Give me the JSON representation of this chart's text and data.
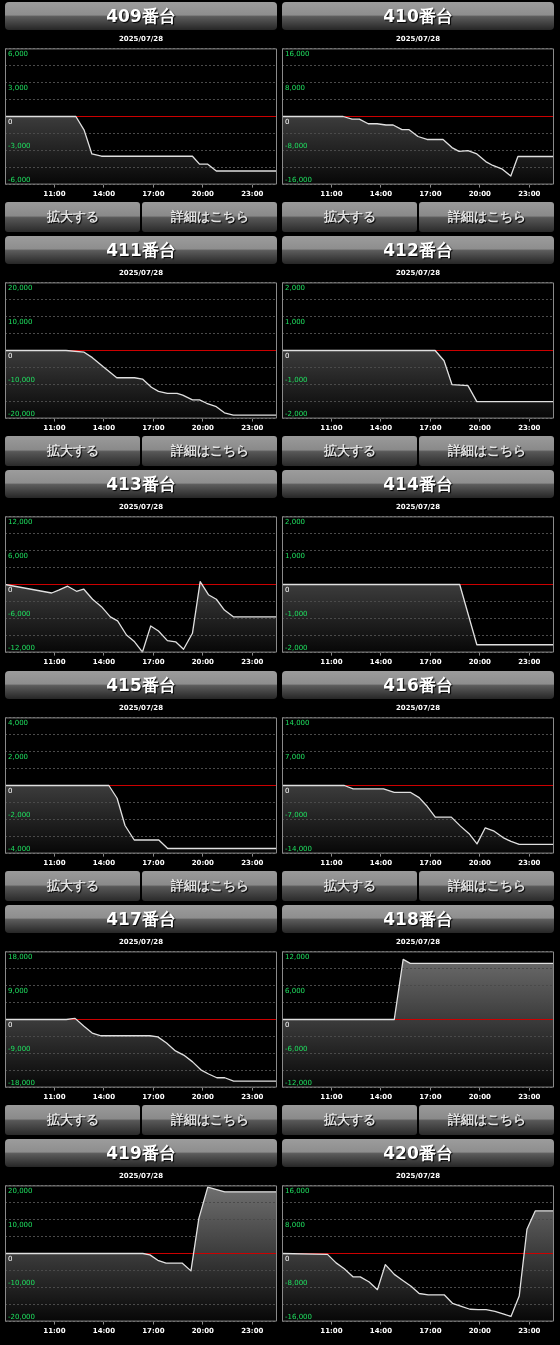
{
  "chart_data": [
    {
      "type": "line",
      "title": "409番台",
      "subtitle": "2025/07/28",
      "x": [
        8,
        12.3,
        12.8,
        13.27,
        13.85,
        19.37,
        19.8,
        20.3,
        20.82,
        24.5
      ],
      "series": [
        {
          "color": "#e0e0e0",
          "values": [
            0,
            0,
            -1200,
            -3300,
            -3500,
            -3500,
            -4200,
            -4200,
            -4800,
            -4800
          ],
          "upper": [
            0,
            0,
            -1200,
            -3300,
            -3500,
            -3500,
            -4200,
            -4200,
            -4800,
            -4800
          ],
          "lower": [
            -6000,
            -6000,
            -6000,
            -6000,
            -6000,
            -6000,
            -6000,
            -6000,
            -6000,
            -6000
          ]
        }
      ],
      "xlim": [
        8,
        24.5
      ],
      "xticks": [
        {
          "value": 11,
          "label": "11:00"
        },
        {
          "value": 14,
          "label": "14:00"
        },
        {
          "value": 17,
          "label": "17:00"
        },
        {
          "value": 20,
          "label": "20:00"
        },
        {
          "value": 23,
          "label": "23:00"
        }
      ],
      "ylim": [
        -6000,
        6000
      ],
      "yticks": [
        {
          "value": -6000,
          "label": "-6,000"
        },
        {
          "value": -4500,
          "label": null
        },
        {
          "value": -3000,
          "label": "-3,000"
        },
        {
          "value": -1500,
          "label": null
        },
        {
          "value": 0,
          "label": "0"
        },
        {
          "value": 1500,
          "label": null
        },
        {
          "value": 3000,
          "label": "3,000"
        },
        {
          "value": 4500,
          "label": null
        },
        {
          "value": 6000,
          "label": "6,000"
        }
      ],
      "grid": "y",
      "ref_lines": [
        {
          "axis": "y",
          "value": 0,
          "color": "#cc0000"
        }
      ],
      "annotations": [
        "拡大する",
        "詳細はこちら"
      ]
    },
    {
      "type": "line",
      "title": "410番台",
      "subtitle": "2025/07/28",
      "x": [
        8,
        11.71,
        12.25,
        12.69,
        13.23,
        13.77,
        14.31,
        14.74,
        15.28,
        15.71,
        16.25,
        16.8,
        17.77,
        18.31,
        18.74,
        19.28,
        19.82,
        20.36,
        20.79,
        21.33,
        21.88,
        22.31,
        24.5
      ],
      "series": [
        {
          "color": "#e0e0e0",
          "values": [
            0,
            0,
            -600,
            -600,
            -1700,
            -1700,
            -2000,
            -2000,
            -3100,
            -3100,
            -4700,
            -5400,
            -5400,
            -7300,
            -8200,
            -8000,
            -8800,
            -10600,
            -11500,
            -12300,
            -14000,
            -9400,
            -9400
          ],
          "upper": [
            0,
            0,
            -600,
            -600,
            -1700,
            -1700,
            -2000,
            -2000,
            -3100,
            -3100,
            -4700,
            -5400,
            -5400,
            -7300,
            -8200,
            -8000,
            -8800,
            -10600,
            -11500,
            -12300,
            -14000,
            -9400,
            -9400
          ],
          "lower": [
            -16000,
            -16000,
            -16000,
            -16000,
            -16000,
            -16000,
            -16000,
            -16000,
            -16000,
            -16000,
            -16000,
            -16000,
            -16000,
            -16000,
            -16000,
            -16000,
            -16000,
            -16000,
            -16000,
            -16000,
            -16000,
            -16000,
            -16000
          ]
        }
      ],
      "xlim": [
        8,
        24.5
      ],
      "xticks": [
        {
          "value": 11,
          "label": "11:00"
        },
        {
          "value": 14,
          "label": "14:00"
        },
        {
          "value": 17,
          "label": "17:00"
        },
        {
          "value": 20,
          "label": "20:00"
        },
        {
          "value": 23,
          "label": "23:00"
        }
      ],
      "ylim": [
        -16000,
        16000
      ],
      "yticks": [
        {
          "value": -16000,
          "label": "-16,000"
        },
        {
          "value": -12000,
          "label": null
        },
        {
          "value": -8000,
          "label": "-8,000"
        },
        {
          "value": -4000,
          "label": null
        },
        {
          "value": 0,
          "label": "0"
        },
        {
          "value": 4000,
          "label": null
        },
        {
          "value": 8000,
          "label": "8,000"
        },
        {
          "value": 12000,
          "label": null
        },
        {
          "value": 16000,
          "label": "16,000"
        }
      ],
      "grid": "y",
      "ref_lines": [
        {
          "axis": "y",
          "value": 0,
          "color": "#cc0000"
        }
      ],
      "annotations": [
        "拡大する",
        "詳細はこちら"
      ]
    },
    {
      "type": "line",
      "title": "411番台",
      "subtitle": "2025/07/28",
      "x": [
        8,
        11.7,
        12.8,
        13.3,
        13.96,
        14.78,
        15.86,
        16.34,
        16.88,
        17.31,
        17.85,
        18.44,
        18.78,
        19.37,
        19.8,
        20.23,
        20.82,
        21.31,
        21.85,
        24.5
      ],
      "series": [
        {
          "color": "#e0e0e0",
          "values": [
            0,
            0,
            -500,
            -2100,
            -4800,
            -8000,
            -8000,
            -8400,
            -10800,
            -12000,
            -12600,
            -12600,
            -13100,
            -14500,
            -14500,
            -15500,
            -16500,
            -18300,
            -19000,
            -19000
          ],
          "upper": [
            0,
            0,
            -500,
            -2100,
            -4800,
            -8000,
            -8000,
            -8400,
            -10800,
            -12000,
            -12600,
            -12600,
            -13100,
            -14500,
            -14500,
            -15500,
            -16500,
            -18300,
            -19000,
            -19000
          ],
          "lower": [
            -20000,
            -20000,
            -20000,
            -20000,
            -20000,
            -20000,
            -20000,
            -20000,
            -20000,
            -20000,
            -20000,
            -20000,
            -20000,
            -20000,
            -20000,
            -20000,
            -20000,
            -20000,
            -20000,
            -20000
          ]
        }
      ],
      "xlim": [
        8,
        24.5
      ],
      "xticks": [
        {
          "value": 11,
          "label": "11:00"
        },
        {
          "value": 14,
          "label": "14:00"
        },
        {
          "value": 17,
          "label": "17:00"
        },
        {
          "value": 20,
          "label": "20:00"
        },
        {
          "value": 23,
          "label": "23:00"
        }
      ],
      "ylim": [
        -20000,
        20000
      ],
      "yticks": [
        {
          "value": -20000,
          "label": "-20,000"
        },
        {
          "value": -15000,
          "label": null
        },
        {
          "value": -10000,
          "label": "-10,000"
        },
        {
          "value": -5000,
          "label": null
        },
        {
          "value": 0,
          "label": "0"
        },
        {
          "value": 5000,
          "label": null
        },
        {
          "value": 10000,
          "label": "10,000"
        },
        {
          "value": 15000,
          "label": null
        },
        {
          "value": 20000,
          "label": "20,000"
        }
      ],
      "grid": "y",
      "ref_lines": [
        {
          "axis": "y",
          "value": 0,
          "color": "#cc0000"
        }
      ],
      "annotations": [
        "拡大する",
        "詳細はこちら"
      ]
    },
    {
      "type": "line",
      "title": "412番台",
      "subtitle": "2025/07/28",
      "x": [
        8,
        17.29,
        17.83,
        18.31,
        19.28,
        19.82,
        24.5
      ],
      "series": [
        {
          "color": "#e0e0e0",
          "values": [
            0,
            0,
            -300,
            -1000,
            -1030,
            -1500,
            -1500
          ],
          "upper": [
            0,
            0,
            -300,
            -1000,
            -1030,
            -1500,
            -1500
          ],
          "lower": [
            -2000,
            -2000,
            -2000,
            -2000,
            -2000,
            -2000,
            -2000
          ]
        }
      ],
      "xlim": [
        8,
        24.5
      ],
      "xticks": [
        {
          "value": 11,
          "label": "11:00"
        },
        {
          "value": 14,
          "label": "14:00"
        },
        {
          "value": 17,
          "label": "17:00"
        },
        {
          "value": 20,
          "label": "20:00"
        },
        {
          "value": 23,
          "label": "23:00"
        }
      ],
      "ylim": [
        -2000,
        2000
      ],
      "yticks": [
        {
          "value": -2000,
          "label": "-2,000"
        },
        {
          "value": -1500,
          "label": null
        },
        {
          "value": -1000,
          "label": "-1,000"
        },
        {
          "value": -500,
          "label": null
        },
        {
          "value": 0,
          "label": "0"
        },
        {
          "value": 500,
          "label": null
        },
        {
          "value": 1000,
          "label": "1,000"
        },
        {
          "value": 1500,
          "label": null
        },
        {
          "value": 2000,
          "label": "2,000"
        }
      ],
      "grid": "y",
      "ref_lines": [
        {
          "axis": "y",
          "value": 0,
          "color": "#cc0000"
        }
      ],
      "annotations": [
        "拡大する",
        "詳細はこちら"
      ]
    },
    {
      "type": "line",
      "title": "413番台",
      "subtitle": "2025/07/28",
      "x": [
        8,
        10.83,
        11.26,
        11.8,
        12.34,
        12.77,
        13.31,
        13.85,
        14.39,
        14.83,
        15.37,
        15.86,
        16.34,
        16.84,
        17.31,
        17.85,
        18.35,
        18.83,
        19.37,
        19.84,
        20.34,
        20.82,
        21.31,
        21.85,
        24.5
      ],
      "series": [
        {
          "color": "#e0e0e0",
          "values": [
            0,
            -1500,
            -1000,
            -300,
            -1200,
            -800,
            -2600,
            -3900,
            -5700,
            -6400,
            -8900,
            -10100,
            -11900,
            -7300,
            -8200,
            -9900,
            -10100,
            -11400,
            -8600,
            500,
            -1800,
            -2600,
            -4500,
            -5700,
            -5700
          ],
          "upper": [
            0,
            -1500,
            -1000,
            -300,
            -1200,
            -800,
            -2600,
            -3900,
            -5700,
            -6400,
            -8900,
            -10100,
            -11900,
            -7300,
            -8200,
            -9900,
            -10100,
            -11400,
            -8600,
            500,
            -1800,
            -2600,
            -4500,
            -5700,
            -5700
          ],
          "lower": [
            -12000,
            -12000,
            -12000,
            -12000,
            -12000,
            -12000,
            -12000,
            -12000,
            -12000,
            -12000,
            -12000,
            -12000,
            -12000,
            -12000,
            -12000,
            -12000,
            -12000,
            -12000,
            -12000,
            -12000,
            -12000,
            -12000,
            -12000,
            -12000,
            -12000
          ]
        }
      ],
      "xlim": [
        8,
        24.5
      ],
      "xticks": [
        {
          "value": 11,
          "label": "11:00"
        },
        {
          "value": 14,
          "label": "14:00"
        },
        {
          "value": 17,
          "label": "17:00"
        },
        {
          "value": 20,
          "label": "20:00"
        },
        {
          "value": 23,
          "label": "23:00"
        }
      ],
      "ylim": [
        -12000,
        12000
      ],
      "yticks": [
        {
          "value": -12000,
          "label": "-12,000"
        },
        {
          "value": -9000,
          "label": null
        },
        {
          "value": -6000,
          "label": "-6,000"
        },
        {
          "value": -3000,
          "label": null
        },
        {
          "value": 0,
          "label": "0"
        },
        {
          "value": 3000,
          "label": null
        },
        {
          "value": 6000,
          "label": "6,000"
        },
        {
          "value": 9000,
          "label": null
        },
        {
          "value": 12000,
          "label": "12,000"
        }
      ],
      "grid": "y",
      "ref_lines": [
        {
          "axis": "y",
          "value": 0,
          "color": "#cc0000"
        }
      ]
    },
    {
      "type": "line",
      "title": "414番台",
      "subtitle": "2025/07/28",
      "x": [
        8,
        18.78,
        19.82,
        24.5
      ],
      "series": [
        {
          "color": "#e0e0e0",
          "values": [
            0,
            0,
            -1770,
            -1770
          ],
          "upper": [
            0,
            0,
            -1770,
            -1770
          ],
          "lower": [
            -2000,
            -2000,
            -2000,
            -2000
          ]
        }
      ],
      "xlim": [
        8,
        24.5
      ],
      "xticks": [
        {
          "value": 11,
          "label": "11:00"
        },
        {
          "value": 14,
          "label": "14:00"
        },
        {
          "value": 17,
          "label": "17:00"
        },
        {
          "value": 20,
          "label": "20:00"
        },
        {
          "value": 23,
          "label": "23:00"
        }
      ],
      "ylim": [
        -2000,
        2000
      ],
      "yticks": [
        {
          "value": -2000,
          "label": "-2,000"
        },
        {
          "value": -1500,
          "label": null
        },
        {
          "value": -1000,
          "label": "-1,000"
        },
        {
          "value": -500,
          "label": null
        },
        {
          "value": 0,
          "label": "0"
        },
        {
          "value": 500,
          "label": null
        },
        {
          "value": 1000,
          "label": "1,000"
        },
        {
          "value": 1500,
          "label": null
        },
        {
          "value": 2000,
          "label": "2,000"
        }
      ],
      "grid": "y",
      "ref_lines": [
        {
          "axis": "y",
          "value": 0,
          "color": "#cc0000"
        }
      ]
    },
    {
      "type": "line",
      "title": "415番台",
      "subtitle": "2025/07/28",
      "x": [
        8,
        14.3,
        14.8,
        15.28,
        15.84,
        17.33,
        17.87,
        24.5
      ],
      "series": [
        {
          "color": "#e0e0e0",
          "values": [
            0,
            0,
            -750,
            -2350,
            -3200,
            -3200,
            -3700,
            -3700
          ],
          "upper": [
            0,
            0,
            -750,
            -2350,
            -3200,
            -3200,
            -3700,
            -3700
          ],
          "lower": [
            -4000,
            -4000,
            -4000,
            -4000,
            -4000,
            -4000,
            -4000,
            -4000
          ]
        }
      ],
      "xlim": [
        8,
        24.5
      ],
      "xticks": [
        {
          "value": 11,
          "label": "11:00"
        },
        {
          "value": 14,
          "label": "14:00"
        },
        {
          "value": 17,
          "label": "17:00"
        },
        {
          "value": 20,
          "label": "20:00"
        },
        {
          "value": 23,
          "label": "23:00"
        }
      ],
      "ylim": [
        -4000,
        4000
      ],
      "yticks": [
        {
          "value": -4000,
          "label": "-4,000"
        },
        {
          "value": -3000,
          "label": null
        },
        {
          "value": -2000,
          "label": "-2,000"
        },
        {
          "value": -1000,
          "label": null
        },
        {
          "value": 0,
          "label": "0"
        },
        {
          "value": 1000,
          "label": null
        },
        {
          "value": 2000,
          "label": "2,000"
        },
        {
          "value": 3000,
          "label": null
        },
        {
          "value": 4000,
          "label": "4,000"
        }
      ],
      "grid": "y",
      "ref_lines": [
        {
          "axis": "y",
          "value": 0,
          "color": "#cc0000"
        }
      ],
      "annotations": [
        "拡大する",
        "詳細はこちら"
      ]
    },
    {
      "type": "line",
      "title": "416番台",
      "subtitle": "2025/07/28",
      "x": [
        8,
        11.78,
        12.32,
        14.16,
        14.81,
        15.78,
        16.32,
        16.76,
        17.3,
        18.27,
        18.81,
        19.35,
        19.83,
        20.33,
        20.87,
        21.41,
        21.89,
        22.39,
        24.5
      ],
      "series": [
        {
          "color": "#e0e0e0",
          "values": [
            0,
            0,
            -700,
            -700,
            -1400,
            -1400,
            -2500,
            -4100,
            -6500,
            -6500,
            -8300,
            -9900,
            -12000,
            -8700,
            -9400,
            -10700,
            -11500,
            -12100,
            -12100
          ],
          "upper": [
            0,
            0,
            -700,
            -700,
            -1400,
            -1400,
            -2500,
            -4100,
            -6500,
            -6500,
            -8300,
            -9900,
            -12000,
            -8700,
            -9400,
            -10700,
            -11500,
            -12100,
            -12100
          ],
          "lower": [
            -14000,
            -14000,
            -14000,
            -14000,
            -14000,
            -14000,
            -14000,
            -14000,
            -14000,
            -14000,
            -14000,
            -14000,
            -14000,
            -14000,
            -14000,
            -14000,
            -14000,
            -14000,
            -14000
          ]
        }
      ],
      "xlim": [
        8,
        24.5
      ],
      "xticks": [
        {
          "value": 11,
          "label": "11:00"
        },
        {
          "value": 14,
          "label": "14:00"
        },
        {
          "value": 17,
          "label": "17:00"
        },
        {
          "value": 20,
          "label": "20:00"
        },
        {
          "value": 23,
          "label": "23:00"
        }
      ],
      "ylim": [
        -14000,
        14000
      ],
      "yticks": [
        {
          "value": -14000,
          "label": "-14,000"
        },
        {
          "value": -10500,
          "label": null
        },
        {
          "value": -7000,
          "label": "-7,000"
        },
        {
          "value": -3500,
          "label": null
        },
        {
          "value": 0,
          "label": "0"
        },
        {
          "value": 3500,
          "label": null
        },
        {
          "value": 7000,
          "label": "7,000"
        },
        {
          "value": 10500,
          "label": null
        },
        {
          "value": 14000,
          "label": "14,000"
        }
      ],
      "grid": "y",
      "ref_lines": [
        {
          "axis": "y",
          "value": 0,
          "color": "#cc0000"
        }
      ],
      "annotations": [
        "拡大する",
        "詳細はこちら"
      ]
    },
    {
      "type": "line",
      "title": "417番台",
      "subtitle": "2025/07/28",
      "x": [
        8,
        11.71,
        12.25,
        12.79,
        13.29,
        13.83,
        16.79,
        17.27,
        17.8,
        18.34,
        18.84,
        19.38,
        19.88,
        20.35,
        20.85,
        21.33,
        21.87,
        24.5
      ],
      "series": [
        {
          "color": "#e0e0e0",
          "values": [
            0,
            0,
            300,
            -1800,
            -3600,
            -4300,
            -4300,
            -4600,
            -6200,
            -8300,
            -9400,
            -11200,
            -13300,
            -14400,
            -15400,
            -15400,
            -16300,
            -16300
          ],
          "upper": [
            0,
            0,
            300,
            -1800,
            -3600,
            -4300,
            -4300,
            -4600,
            -6200,
            -8300,
            -9400,
            -11200,
            -13300,
            -14400,
            -15400,
            -15400,
            -16300,
            -16300
          ],
          "lower": [
            -18000,
            -18000,
            -18000,
            -18000,
            -18000,
            -18000,
            -18000,
            -18000,
            -18000,
            -18000,
            -18000,
            -18000,
            -18000,
            -18000,
            -18000,
            -18000,
            -18000,
            -18000
          ]
        }
      ],
      "xlim": [
        8,
        24.5
      ],
      "xticks": [
        {
          "value": 11,
          "label": "11:00"
        },
        {
          "value": 14,
          "label": "14:00"
        },
        {
          "value": 17,
          "label": "17:00"
        },
        {
          "value": 20,
          "label": "20:00"
        },
        {
          "value": 23,
          "label": "23:00"
        }
      ],
      "ylim": [
        -18000,
        18000
      ],
      "yticks": [
        {
          "value": -18000,
          "label": "-18,000"
        },
        {
          "value": -13500,
          "label": null
        },
        {
          "value": -9000,
          "label": "-9,000"
        },
        {
          "value": -4500,
          "label": null
        },
        {
          "value": 0,
          "label": "0"
        },
        {
          "value": 4500,
          "label": null
        },
        {
          "value": 9000,
          "label": "9,000"
        },
        {
          "value": 13500,
          "label": null
        },
        {
          "value": 18000,
          "label": "18,000"
        }
      ],
      "grid": "y",
      "ref_lines": [
        {
          "axis": "y",
          "value": 0,
          "color": "#cc0000"
        }
      ],
      "annotations": [
        "拡大する",
        "詳細はこちら"
      ]
    },
    {
      "type": "line",
      "title": "418番台",
      "subtitle": "2025/07/28",
      "x": [
        8,
        14.81,
        15.35,
        15.78,
        24.5
      ],
      "series": [
        {
          "color": "#e0e0e0",
          "values": [
            0,
            0,
            10600,
            9900,
            9900
          ],
          "upper": [
            0,
            0,
            10600,
            9900,
            9900
          ],
          "lower": [
            -12000,
            -12000,
            -12000,
            -12000,
            -12000
          ]
        }
      ],
      "xlim": [
        8,
        24.5
      ],
      "xticks": [
        {
          "value": 11,
          "label": "11:00"
        },
        {
          "value": 14,
          "label": "14:00"
        },
        {
          "value": 17,
          "label": "17:00"
        },
        {
          "value": 20,
          "label": "20:00"
        },
        {
          "value": 23,
          "label": "23:00"
        }
      ],
      "ylim": [
        -12000,
        12000
      ],
      "yticks": [
        {
          "value": -12000,
          "label": "-12,000"
        },
        {
          "value": -9000,
          "label": null
        },
        {
          "value": -6000,
          "label": "-6,000"
        },
        {
          "value": -3000,
          "label": null
        },
        {
          "value": 0,
          "label": "0"
        },
        {
          "value": 3000,
          "label": null
        },
        {
          "value": 6000,
          "label": "6,000"
        },
        {
          "value": 9000,
          "label": null
        },
        {
          "value": 12000,
          "label": "12,000"
        }
      ],
      "grid": "y",
      "ref_lines": [
        {
          "axis": "y",
          "value": 0,
          "color": "#cc0000"
        }
      ],
      "annotations": [
        "拡大する",
        "詳細はこちら"
      ]
    },
    {
      "type": "line",
      "title": "419番台",
      "subtitle": "2025/07/28",
      "x": [
        8,
        16.36,
        16.79,
        17.27,
        17.77,
        18.74,
        19.28,
        19.76,
        20.3,
        21.33,
        24.5
      ],
      "series": [
        {
          "color": "#e0e0e0",
          "values": [
            0,
            0,
            -400,
            -2000,
            -2800,
            -2800,
            -5100,
            10300,
            19500,
            18100,
            18100
          ],
          "upper": [
            0,
            0,
            -400,
            -2000,
            -2800,
            -2800,
            -5100,
            10300,
            19500,
            18100,
            18100
          ],
          "lower": [
            -20000,
            -20000,
            -20000,
            -20000,
            -20000,
            -20000,
            -20000,
            -20000,
            -20000,
            -20000,
            -20000
          ]
        }
      ],
      "xlim": [
        8,
        24.5
      ],
      "xticks": [
        {
          "value": 11,
          "label": "11:00"
        },
        {
          "value": 14,
          "label": "14:00"
        },
        {
          "value": 17,
          "label": "17:00"
        },
        {
          "value": 20,
          "label": "20:00"
        },
        {
          "value": 23,
          "label": "23:00"
        }
      ],
      "ylim": [
        -20000,
        20000
      ],
      "yticks": [
        {
          "value": -20000,
          "label": "-20,000"
        },
        {
          "value": -15000,
          "label": null
        },
        {
          "value": -10000,
          "label": "-10,000"
        },
        {
          "value": -5000,
          "label": null
        },
        {
          "value": 0,
          "label": "0"
        },
        {
          "value": 5000,
          "label": null
        },
        {
          "value": 10000,
          "label": "10,000"
        },
        {
          "value": 15000,
          "label": null
        },
        {
          "value": 20000,
          "label": "20,000"
        }
      ],
      "grid": "y",
      "ref_lines": [
        {
          "axis": "y",
          "value": 0,
          "color": "#cc0000"
        }
      ]
    },
    {
      "type": "line",
      "title": "420番台",
      "subtitle": "2025/07/28",
      "x": [
        8,
        10.76,
        11.28,
        11.78,
        12.32,
        12.75,
        13.29,
        13.79,
        14.27,
        14.81,
        15.35,
        15.83,
        16.32,
        16.87,
        17.84,
        18.34,
        18.88,
        19.4,
        19.9,
        20.38,
        20.92,
        21.41,
        21.89,
        22.39,
        22.86,
        23.36,
        24.5
      ],
      "series": [
        {
          "color": "#e0e0e0",
          "values": [
            0,
            -200,
            -2200,
            -3600,
            -5500,
            -5500,
            -6700,
            -8500,
            -2600,
            -4900,
            -6400,
            -7700,
            -9400,
            -9700,
            -9700,
            -11700,
            -12400,
            -13100,
            -13200,
            -13200,
            -13600,
            -14200,
            -14800,
            -10000,
            5700,
            10000,
            10000
          ],
          "upper": [
            0,
            -200,
            -2200,
            -3600,
            -5500,
            -5500,
            -6700,
            -8500,
            -2600,
            -4900,
            -6400,
            -7700,
            -9400,
            -9700,
            -9700,
            -11700,
            -12400,
            -13100,
            -13200,
            -13200,
            -13600,
            -14200,
            -14800,
            -10000,
            5700,
            10000,
            10000
          ],
          "lower": [
            -16000,
            -16000,
            -16000,
            -16000,
            -16000,
            -16000,
            -16000,
            -16000,
            -16000,
            -16000,
            -16000,
            -16000,
            -16000,
            -16000,
            -16000,
            -16000,
            -16000,
            -16000,
            -16000,
            -16000,
            -16000,
            -16000,
            -16000,
            -16000,
            -16000,
            -16000,
            -16000
          ]
        }
      ],
      "xlim": [
        8,
        24.5
      ],
      "xticks": [
        {
          "value": 11,
          "label": "11:00"
        },
        {
          "value": 14,
          "label": "14:00"
        },
        {
          "value": 17,
          "label": "17:00"
        },
        {
          "value": 20,
          "label": "20:00"
        },
        {
          "value": 23,
          "label": "23:00"
        }
      ],
      "ylim": [
        -16000,
        16000
      ],
      "yticks": [
        {
          "value": -16000,
          "label": "-16,000"
        },
        {
          "value": -12000,
          "label": null
        },
        {
          "value": -8000,
          "label": "-8,000"
        },
        {
          "value": -4000,
          "label": null
        },
        {
          "value": 0,
          "label": "0"
        },
        {
          "value": 4000,
          "label": null
        },
        {
          "value": 8000,
          "label": "8,000"
        },
        {
          "value": 12000,
          "label": null
        },
        {
          "value": 16000,
          "label": "16,000"
        }
      ],
      "grid": "y",
      "ref_lines": [
        {
          "axis": "y",
          "value": 0,
          "color": "#cc0000"
        }
      ]
    }
  ]
}
